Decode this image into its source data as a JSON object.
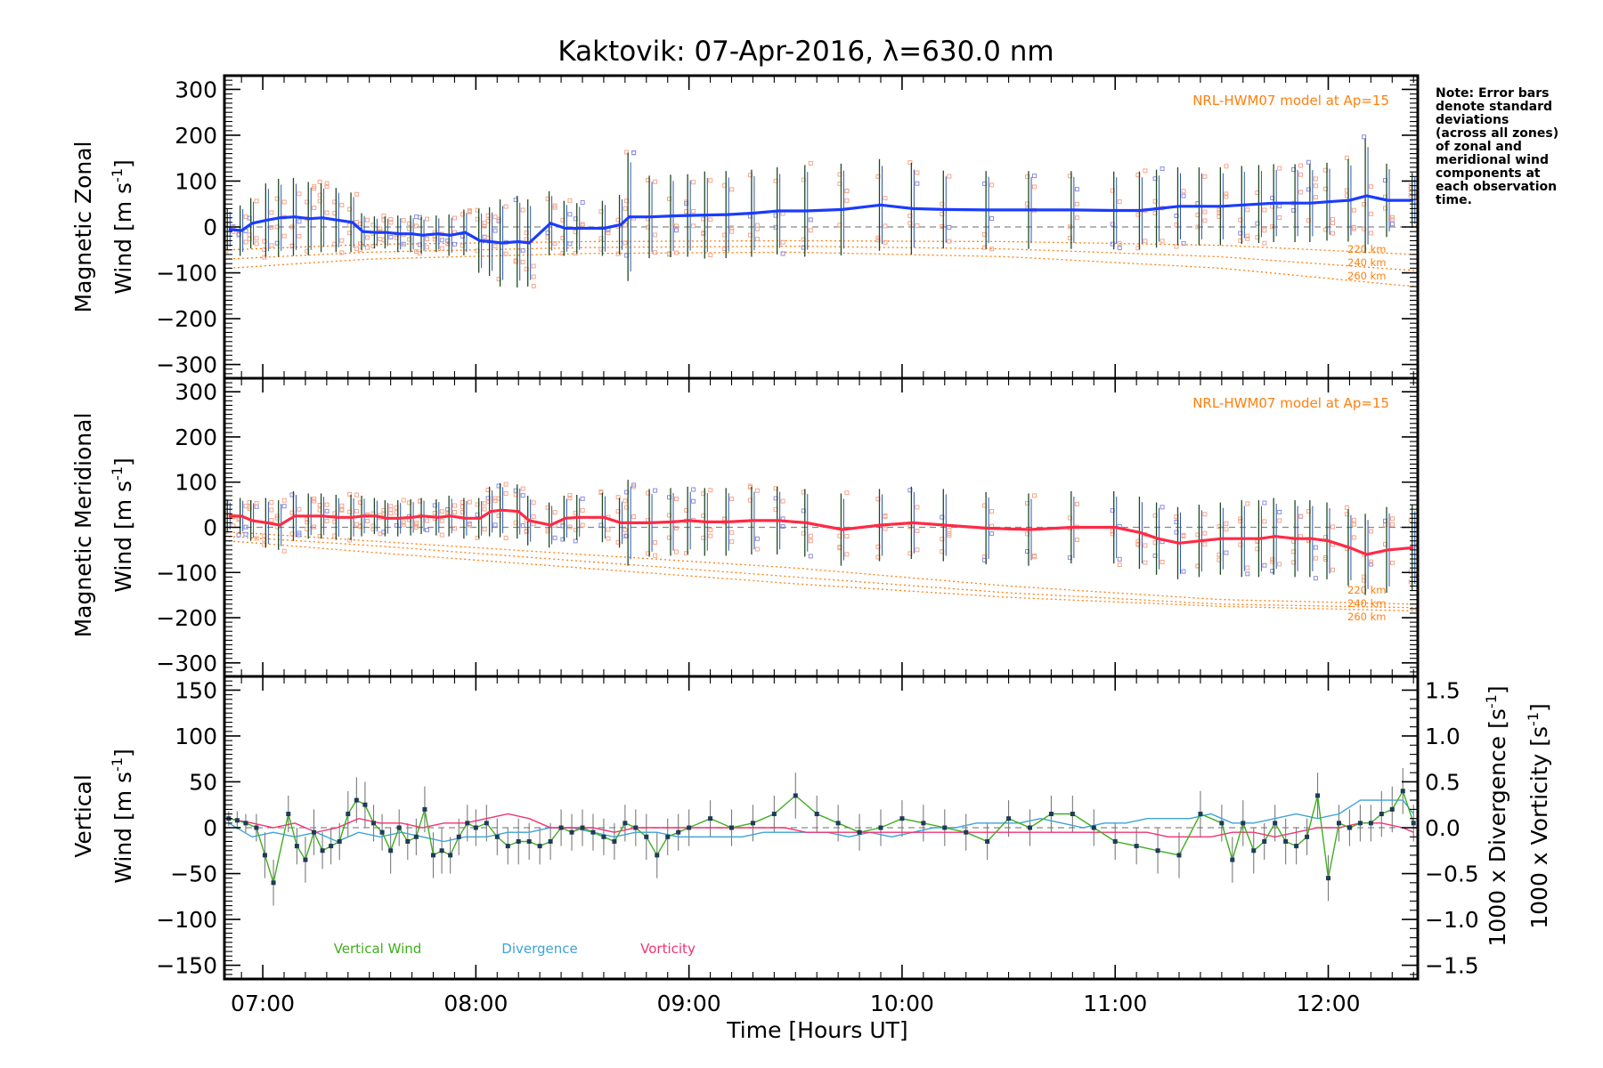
{
  "title": "Kaktovik: 07-Apr-2016, λ=630.0 nm",
  "note_lines": [
    "Note: Error bars",
    "denote standard",
    "deviations",
    "(across all zones)",
    "of zonal and",
    "meridional wind",
    "components at",
    "each observation",
    "time."
  ],
  "x_axis": {
    "label": "Time [Hours UT]",
    "range_hours": [
      6.82,
      12.42
    ],
    "tick_labels": [
      "07:00",
      "08:00",
      "09:00",
      "10:00",
      "11:00",
      "12:00"
    ]
  },
  "panels": {
    "zonal": {
      "ylabel_line1": "Magnetic Zonal",
      "ylabel_line2": "Wind [m s",
      "ylabel_sup": "-1",
      "ylabel_end": "]",
      "yrange": [
        -330,
        330
      ],
      "yticks": [
        "300",
        "200",
        "100",
        "0",
        "−100",
        "−200",
        "−300"
      ],
      "model_label": "NRL-HWM07 model at Ap=15",
      "alt_labels": [
        "220 km",
        "240 km",
        "260 km"
      ]
    },
    "meridional": {
      "ylabel_line1": "Magnetic Meridional",
      "ylabel_line2": "Wind [m s",
      "ylabel_sup": "-1",
      "ylabel_end": "]",
      "yrange": [
        -330,
        330
      ],
      "yticks": [
        "300",
        "200",
        "100",
        "0",
        "−100",
        "−200",
        "−300"
      ],
      "model_label": "NRL-HWM07 model at Ap=15",
      "alt_labels": [
        "220 km",
        "240 km",
        "260 km"
      ]
    },
    "vertical": {
      "ylabel_line1": "Vertical",
      "ylabel_line2": "Wind [m s",
      "ylabel_sup": "-1",
      "ylabel_end": "]",
      "yrange": [
        -165,
        165
      ],
      "yticks": [
        "150",
        "100",
        "50",
        "0",
        "−50",
        "−100",
        "−150"
      ],
      "right_range": [
        -1.65,
        1.65
      ],
      "right_ticks": [
        "1.5",
        "1.0",
        "0.5",
        "0.0",
        "−0.5",
        "−1.0",
        "−1.5"
      ],
      "right_label_div": "1000 x Divergence [s",
      "right_label_vor": "1000 x Vorticity [s",
      "right_label_sup": "-1",
      "right_label_end": "]",
      "legend": [
        "Vertical Wind",
        "Divergence",
        "Vorticity"
      ]
    }
  },
  "colors": {
    "zonal": "#1a3cff",
    "meridional": "#ff2a45",
    "vertical": "#3fae1f",
    "divergence": "#3fa2d6",
    "vorticity": "#f0336f",
    "model": "#ff7f0e",
    "zone_points": "#f7a58a",
    "zone_points_blue": "#8c8ce0",
    "errorbar_dark": "#1f4a22",
    "errorbar_blue": "#2b55b0",
    "errorbar_gray": "#7a7a7a",
    "zero_line": "#888888"
  },
  "chart_data": [
    {
      "type": "line",
      "name": "zonal",
      "x_hours": [
        6.84,
        6.9,
        6.95,
        7.02,
        7.08,
        7.15,
        7.22,
        7.28,
        7.35,
        7.42,
        7.47,
        7.53,
        7.58,
        7.64,
        7.7,
        7.75,
        7.82,
        7.88,
        7.95,
        8.02,
        8.07,
        8.12,
        8.2,
        8.25,
        8.35,
        8.42,
        8.48,
        8.6,
        8.68,
        8.72,
        8.82,
        8.92,
        9.0,
        9.08,
        9.18,
        9.3,
        9.42,
        9.55,
        9.72,
        9.9,
        10.05,
        10.2,
        10.4,
        10.6,
        10.8,
        11.0,
        11.12,
        11.2,
        11.3,
        11.4,
        11.5,
        11.6,
        11.68,
        11.75,
        11.85,
        11.92,
        12.0,
        12.1,
        12.18,
        12.28,
        12.4
      ],
      "y": [
        -5,
        -8,
        8,
        15,
        20,
        22,
        18,
        20,
        15,
        10,
        -10,
        -12,
        -12,
        -15,
        -15,
        -18,
        -15,
        -18,
        -12,
        -30,
        -32,
        -35,
        -32,
        -35,
        8,
        -3,
        -3,
        -3,
        5,
        22,
        22,
        24,
        25,
        26,
        27,
        30,
        35,
        35,
        38,
        48,
        40,
        38,
        37,
        37,
        37,
        36,
        36,
        40,
        45,
        45,
        45,
        48,
        50,
        52,
        52,
        52,
        55,
        58,
        68,
        58,
        58
      ],
      "error_sd": [
        45,
        55,
        55,
        80,
        85,
        85,
        80,
        75,
        70,
        65,
        40,
        35,
        35,
        40,
        40,
        40,
        40,
        45,
        50,
        70,
        75,
        95,
        100,
        95,
        70,
        60,
        55,
        60,
        65,
        140,
        90,
        90,
        90,
        95,
        95,
        95,
        95,
        100,
        100,
        100,
        100,
        85,
        85,
        85,
        85,
        85,
        85,
        85,
        85,
        85,
        85,
        85,
        85,
        85,
        85,
        85,
        85,
        90,
        125,
        80,
        60
      ]
    },
    {
      "type": "line",
      "name": "meridional",
      "x_hours": [
        6.84,
        6.9,
        6.95,
        7.02,
        7.08,
        7.15,
        7.22,
        7.28,
        7.35,
        7.42,
        7.47,
        7.53,
        7.58,
        7.64,
        7.7,
        7.75,
        7.82,
        7.88,
        7.95,
        8.02,
        8.07,
        8.12,
        8.2,
        8.25,
        8.35,
        8.42,
        8.48,
        8.6,
        8.68,
        8.72,
        8.82,
        8.92,
        9.0,
        9.08,
        9.18,
        9.3,
        9.42,
        9.55,
        9.72,
        9.9,
        10.05,
        10.2,
        10.4,
        10.6,
        10.8,
        11.0,
        11.12,
        11.2,
        11.3,
        11.4,
        11.5,
        11.6,
        11.68,
        11.75,
        11.85,
        11.92,
        12.0,
        12.1,
        12.18,
        12.28,
        12.4
      ],
      "y": [
        25,
        25,
        15,
        10,
        5,
        25,
        25,
        25,
        22,
        22,
        25,
        25,
        20,
        20,
        22,
        25,
        22,
        25,
        20,
        20,
        35,
        38,
        35,
        15,
        5,
        20,
        22,
        22,
        10,
        10,
        10,
        12,
        15,
        12,
        12,
        15,
        15,
        10,
        -5,
        5,
        10,
        5,
        -2,
        -5,
        0,
        0,
        -12,
        -25,
        -35,
        -30,
        -25,
        -25,
        -25,
        -20,
        -25,
        -25,
        -30,
        -45,
        -60,
        -50,
        -45
      ],
      "error_sd": [
        35,
        40,
        45,
        55,
        55,
        55,
        50,
        50,
        50,
        50,
        45,
        40,
        40,
        40,
        40,
        40,
        40,
        45,
        45,
        45,
        55,
        60,
        60,
        55,
        50,
        50,
        50,
        55,
        55,
        95,
        75,
        75,
        75,
        75,
        75,
        75,
        75,
        75,
        80,
        80,
        80,
        80,
        80,
        80,
        80,
        80,
        80,
        80,
        80,
        80,
        80,
        85,
        85,
        85,
        85,
        85,
        85,
        85,
        90,
        95,
        95
      ]
    },
    {
      "type": "line",
      "name": "Vertical Wind",
      "x_hours": [
        6.84,
        6.88,
        6.92,
        6.97,
        7.01,
        7.05,
        7.12,
        7.16,
        7.2,
        7.24,
        7.28,
        7.32,
        7.36,
        7.4,
        7.44,
        7.48,
        7.52,
        7.56,
        7.6,
        7.64,
        7.68,
        7.72,
        7.76,
        7.8,
        7.84,
        7.88,
        7.92,
        7.96,
        8.0,
        8.05,
        8.1,
        8.15,
        8.2,
        8.25,
        8.3,
        8.35,
        8.4,
        8.45,
        8.5,
        8.55,
        8.6,
        8.65,
        8.7,
        8.75,
        8.8,
        8.85,
        8.9,
        8.95,
        9.0,
        9.1,
        9.2,
        9.3,
        9.4,
        9.5,
        9.6,
        9.7,
        9.8,
        9.9,
        10.0,
        10.1,
        10.2,
        10.3,
        10.4,
        10.5,
        10.6,
        10.7,
        10.8,
        10.9,
        11.0,
        11.1,
        11.2,
        11.3,
        11.4,
        11.5,
        11.55,
        11.6,
        11.65,
        11.7,
        11.75,
        11.8,
        11.85,
        11.9,
        11.95,
        12.0,
        12.05,
        12.1,
        12.15,
        12.2,
        12.25,
        12.3,
        12.35,
        12.4
      ],
      "y": [
        10,
        8,
        5,
        0,
        -30,
        -60,
        15,
        -20,
        -35,
        -5,
        -25,
        -20,
        -15,
        15,
        30,
        25,
        5,
        -5,
        -25,
        0,
        -15,
        -10,
        20,
        -30,
        -25,
        -30,
        -10,
        5,
        0,
        5,
        -10,
        -20,
        -15,
        -15,
        -20,
        -15,
        0,
        -5,
        0,
        -5,
        -10,
        -15,
        5,
        0,
        -10,
        -30,
        -10,
        -5,
        0,
        10,
        0,
        5,
        15,
        35,
        15,
        5,
        -5,
        0,
        10,
        5,
        0,
        -5,
        -15,
        10,
        0,
        15,
        15,
        0,
        -15,
        -20,
        -25,
        -30,
        15,
        5,
        -35,
        5,
        -25,
        -15,
        5,
        -15,
        -20,
        -10,
        35,
        -55,
        5,
        0,
        5,
        5,
        15,
        20,
        40,
        5
      ],
      "error_sd": [
        8,
        10,
        10,
        15,
        25,
        25,
        20,
        20,
        25,
        25,
        20,
        20,
        20,
        25,
        25,
        25,
        20,
        20,
        25,
        20,
        20,
        20,
        25,
        25,
        25,
        20,
        20,
        20,
        20,
        20,
        20,
        20,
        25,
        20,
        20,
        20,
        20,
        20,
        20,
        20,
        20,
        20,
        20,
        20,
        25,
        25,
        20,
        20,
        20,
        20,
        20,
        20,
        20,
        25,
        20,
        20,
        20,
        20,
        20,
        20,
        20,
        20,
        20,
        20,
        20,
        20,
        20,
        20,
        20,
        20,
        25,
        25,
        25,
        20,
        25,
        25,
        25,
        20,
        20,
        25,
        20,
        20,
        25,
        25,
        20,
        20,
        20,
        20,
        25,
        25,
        25,
        20
      ]
    },
    {
      "type": "line",
      "name": "Divergence",
      "x_hours": [
        6.84,
        6.95,
        7.05,
        7.15,
        7.25,
        7.35,
        7.45,
        7.55,
        7.65,
        7.75,
        7.85,
        7.95,
        8.05,
        8.15,
        8.25,
        8.35,
        8.45,
        8.55,
        8.65,
        8.75,
        8.85,
        8.95,
        9.05,
        9.15,
        9.25,
        9.35,
        9.45,
        9.55,
        9.65,
        9.75,
        9.85,
        9.95,
        10.05,
        10.15,
        10.25,
        10.35,
        10.45,
        10.55,
        10.65,
        10.75,
        10.85,
        10.95,
        11.05,
        11.15,
        11.25,
        11.35,
        11.45,
        11.55,
        11.65,
        11.75,
        11.85,
        11.95,
        12.05,
        12.15,
        12.25,
        12.35,
        12.4
      ],
      "y": [
        0.05,
        -0.1,
        -0.05,
        -0.1,
        -0.05,
        -0.15,
        -0.05,
        -0.1,
        -0.05,
        -0.1,
        -0.15,
        -0.1,
        -0.1,
        -0.05,
        -0.05,
        0.0,
        0.0,
        -0.05,
        -0.1,
        -0.05,
        -0.05,
        -0.1,
        -0.1,
        -0.1,
        -0.1,
        -0.05,
        -0.05,
        -0.05,
        -0.05,
        -0.1,
        -0.05,
        -0.1,
        -0.05,
        0.0,
        0.0,
        0.05,
        0.05,
        0.05,
        0.1,
        0.05,
        0.0,
        0.05,
        0.05,
        0.1,
        0.1,
        0.1,
        0.15,
        0.05,
        0.05,
        0.1,
        0.15,
        0.1,
        0.15,
        0.3,
        0.3,
        0.3,
        0.15
      ]
    },
    {
      "type": "line",
      "name": "Vorticity",
      "x_hours": [
        6.84,
        6.95,
        7.05,
        7.15,
        7.25,
        7.35,
        7.45,
        7.55,
        7.65,
        7.75,
        7.85,
        7.95,
        8.05,
        8.15,
        8.25,
        8.35,
        8.45,
        8.55,
        8.65,
        8.75,
        8.85,
        8.95,
        9.05,
        9.15,
        9.25,
        9.35,
        9.45,
        9.55,
        9.65,
        9.75,
        9.85,
        9.95,
        10.05,
        10.15,
        10.25,
        10.35,
        10.45,
        10.55,
        10.65,
        10.75,
        10.85,
        10.95,
        11.05,
        11.15,
        11.25,
        11.35,
        11.45,
        11.55,
        11.65,
        11.75,
        11.85,
        11.95,
        12.05,
        12.15,
        12.25,
        12.35,
        12.4
      ],
      "y": [
        0.1,
        0.05,
        0.0,
        0.05,
        -0.05,
        0.0,
        0.1,
        0.05,
        0.05,
        0.0,
        0.05,
        0.05,
        0.1,
        0.15,
        0.1,
        0.0,
        0.0,
        0.0,
        -0.05,
        0.0,
        0.0,
        0.0,
        0.0,
        0.0,
        0.0,
        0.0,
        0.0,
        -0.05,
        -0.05,
        -0.05,
        -0.05,
        -0.05,
        -0.05,
        -0.05,
        -0.05,
        -0.05,
        -0.05,
        -0.05,
        -0.05,
        -0.05,
        -0.05,
        -0.05,
        -0.05,
        -0.05,
        -0.1,
        -0.1,
        -0.1,
        -0.05,
        -0.05,
        -0.1,
        -0.05,
        0.0,
        0.0,
        0.05,
        0.05,
        0.0,
        -0.05
      ]
    }
  ],
  "model_curves": {
    "zonal": [
      {
        "label": "220 km",
        "x_hours": [
          6.84,
          7.5,
          8.5,
          9.5,
          10.5,
          11.5,
          12.4
        ],
        "y": [
          -50,
          -38,
          -32,
          -30,
          -32,
          -40,
          -60
        ]
      },
      {
        "label": "240 km",
        "x_hours": [
          6.84,
          7.5,
          8.5,
          9.5,
          10.5,
          11.5,
          12.4
        ],
        "y": [
          -70,
          -55,
          -45,
          -42,
          -48,
          -65,
          -95
        ]
      },
      {
        "label": "260 km",
        "x_hours": [
          6.84,
          7.5,
          8.5,
          9.5,
          10.5,
          11.5,
          12.4
        ],
        "y": [
          -90,
          -70,
          -58,
          -55,
          -65,
          -90,
          -130
        ]
      }
    ],
    "meridional": [
      {
        "label": "220 km",
        "x_hours": [
          6.84,
          7.5,
          8.5,
          9.5,
          10.5,
          11.5,
          12.4
        ],
        "y": [
          -10,
          -30,
          -60,
          -90,
          -130,
          -160,
          -170
        ]
      },
      {
        "label": "240 km",
        "x_hours": [
          6.84,
          7.5,
          8.5,
          9.5,
          10.5,
          11.5,
          12.4
        ],
        "y": [
          -20,
          -40,
          -75,
          -110,
          -145,
          -170,
          -178
        ]
      },
      {
        "label": "260 km",
        "x_hours": [
          6.84,
          7.5,
          8.5,
          9.5,
          10.5,
          11.5,
          12.4
        ],
        "y": [
          -30,
          -55,
          -90,
          -125,
          -155,
          -175,
          -185
        ]
      }
    ]
  }
}
